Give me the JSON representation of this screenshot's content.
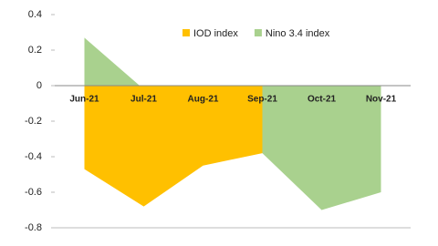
{
  "chart_data": {
    "type": "area",
    "categories": [
      "Jun-21",
      "Jul-21",
      "Aug-21",
      "Sep-21",
      "Oct-21",
      "Nov-21"
    ],
    "series": [
      {
        "name": "IOD index",
        "color": "#FFC000",
        "values": [
          -0.47,
          -0.68,
          -0.45,
          -0.38,
          null,
          null
        ]
      },
      {
        "name": "Nino 3.4 index",
        "color": "#A9D18E",
        "values": [
          0.27,
          -0.02,
          -0.2,
          -0.38,
          -0.7,
          -0.6
        ]
      }
    ],
    "ylim": [
      -0.8,
      0.4
    ],
    "yticks": [
      0.4,
      0.2,
      0,
      -0.2,
      -0.4,
      -0.6,
      -0.8
    ],
    "legend": "top"
  }
}
